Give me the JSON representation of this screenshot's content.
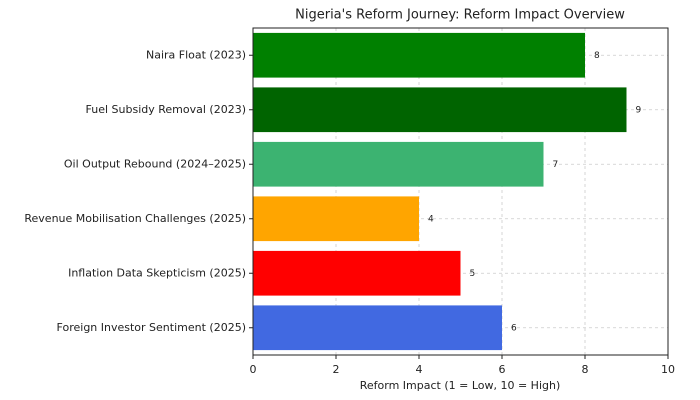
{
  "chart_data": {
    "type": "barh",
    "title": "Nigeria's Reform Journey: Reform Impact Overview",
    "x_label": "Reform Impact (1 = Low, 10 = High)",
    "categories": [
      "Naira Float (2023)",
      "Fuel Subsidy Removal (2023)",
      "Oil Output Rebound (2024–2025)",
      "Revenue Mobilisation Challenges (2025)",
      "Inflation Data Skepticism (2025)",
      "Foreign Investor Sentiment (2025)"
    ],
    "values": [
      8,
      9,
      7,
      4,
      5,
      6
    ],
    "colors": [
      "#008000",
      "#006400",
      "#3cb371",
      "#ffa500",
      "#ff0000",
      "#4169e1"
    ],
    "xlim": [
      0,
      10
    ],
    "xticks": [
      0,
      2,
      4,
      6,
      8,
      10
    ],
    "grid": true
  }
}
